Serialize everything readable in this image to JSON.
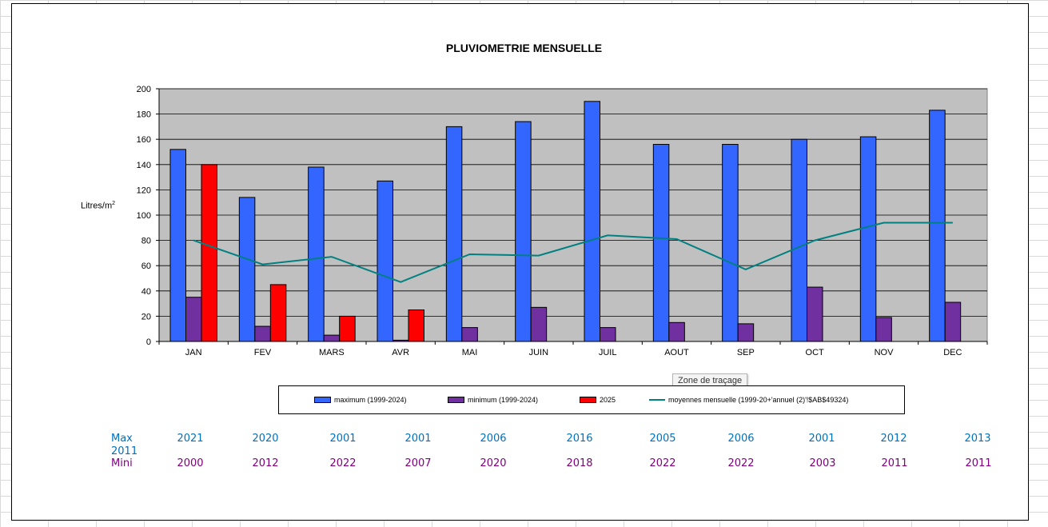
{
  "chart_data": {
    "type": "bar",
    "title": "PLUVIOMETRIE MENSUELLE",
    "ylabel": "Litres/m",
    "ylabel_superscript": "2",
    "ylim": [
      0,
      200
    ],
    "yticks": [
      0,
      20,
      40,
      60,
      80,
      100,
      120,
      140,
      160,
      180,
      200
    ],
    "grid": true,
    "legend_position": "bottom",
    "categories": [
      "JAN",
      "FEV",
      "MARS",
      "AVR",
      "MAI",
      "JUIN",
      "JUIL",
      "AOUT",
      "SEP",
      "OCT",
      "NOV",
      "DEC"
    ],
    "series": [
      {
        "name": "maximum  (1999-2024)",
        "kind": "bar",
        "color": "#3366ff",
        "values": [
          152,
          114,
          138,
          127,
          170,
          174,
          190,
          156,
          156,
          160,
          162,
          183
        ]
      },
      {
        "name": "minimum  (1999-2024)",
        "kind": "bar",
        "color": "#7030a0",
        "values": [
          35,
          12,
          5,
          1,
          11,
          27,
          11,
          15,
          14,
          43,
          19,
          31
        ]
      },
      {
        "name": "2025",
        "kind": "bar",
        "color": "#ff0000",
        "values": [
          140,
          45,
          20,
          25,
          null,
          null,
          null,
          null,
          null,
          null,
          null,
          null
        ]
      },
      {
        "name": "moyennes mensuelle (1999-20+'annuel  (2)'!$AB$49324)",
        "kind": "line",
        "color": "#008080",
        "values": [
          80,
          61,
          67,
          47,
          69,
          68,
          84,
          81,
          57,
          80,
          94,
          94
        ]
      }
    ]
  },
  "colors": {
    "plot_bg": "#c0c0c0",
    "max_text": "#0070c0",
    "min_text": "#800080"
  },
  "tooltip": "Zone de traçage",
  "records": {
    "max_label": "Max",
    "extra_label": "2011",
    "min_label": "Mini",
    "max_years": [
      "2021",
      "2020",
      "2001",
      "2001",
      "2006",
      "2016",
      "2005",
      "2006",
      "2001",
      "2012",
      "2013"
    ],
    "min_years": [
      "2000",
      "2012",
      "2022",
      "2007",
      "2020",
      "2018",
      "2022",
      "2022",
      "2003",
      "2011",
      "2011"
    ]
  }
}
